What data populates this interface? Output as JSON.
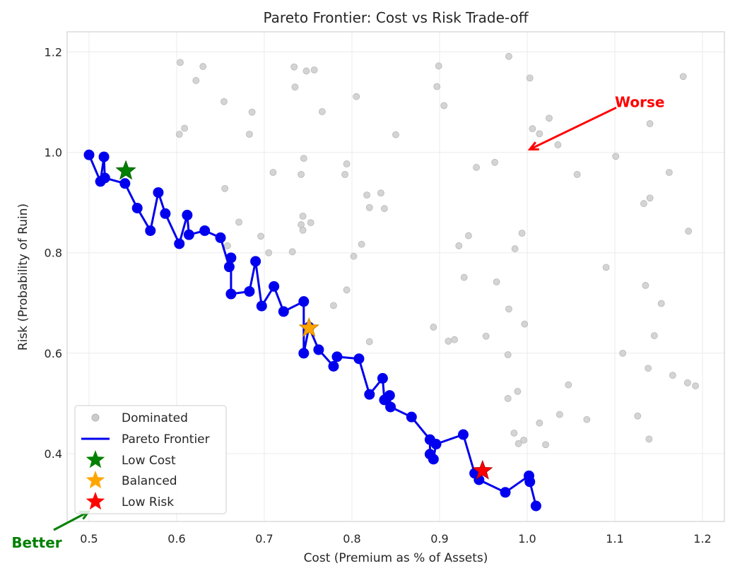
{
  "chart_data": {
    "type": "scatter",
    "title": "Pareto Frontier: Cost vs Risk Trade-off",
    "xlabel": "Cost (Premium as % of Assets)",
    "ylabel": "Risk (Probability of Ruin)",
    "xlim": [
      0.475,
      1.225
    ],
    "ylim": [
      0.265,
      1.24
    ],
    "xticks": [
      "0.5",
      "0.6",
      "0.7",
      "0.8",
      "0.9",
      "1.0",
      "1.1",
      "1.2"
    ],
    "xtick_values": [
      0.5,
      0.6,
      0.7,
      0.8,
      0.9,
      1.0,
      1.1,
      1.2
    ],
    "yticks": [
      "0.4",
      "0.6",
      "0.8",
      "1.0",
      "1.2"
    ],
    "ytick_values": [
      0.4,
      0.6,
      0.8,
      1.0,
      1.2
    ],
    "grid": true,
    "legend_position": "bottom-left",
    "colors": {
      "dominated": "#cccccc",
      "frontier": "#0000ee",
      "low_cost": "#008000",
      "balanced": "#ffa500",
      "low_risk": "#ff0000",
      "worse": "#ff0000",
      "better": "#008000"
    },
    "series": [
      {
        "name": "Dominated",
        "kind": "scatter",
        "points": [
          [
            0.604,
            1.179
          ],
          [
            0.63,
            1.171
          ],
          [
            0.622,
            1.143
          ],
          [
            0.734,
            1.17
          ],
          [
            0.748,
            1.162
          ],
          [
            0.757,
            1.164
          ],
          [
            0.735,
            1.13
          ],
          [
            0.654,
            1.101
          ],
          [
            0.686,
            1.08
          ],
          [
            0.766,
            1.081
          ],
          [
            0.603,
            1.036
          ],
          [
            0.609,
            1.048
          ],
          [
            0.683,
            1.036
          ],
          [
            0.745,
            0.988
          ],
          [
            0.71,
            0.96
          ],
          [
            0.742,
            0.956
          ],
          [
            0.655,
            0.928
          ],
          [
            0.744,
            0.873
          ],
          [
            0.742,
            0.856
          ],
          [
            0.753,
            0.86
          ],
          [
            0.744,
            0.845
          ],
          [
            0.671,
            0.861
          ],
          [
            0.658,
            0.814
          ],
          [
            0.696,
            0.833
          ],
          [
            0.705,
            0.8
          ],
          [
            0.732,
            0.802
          ],
          [
            0.805,
            1.111
          ],
          [
            0.794,
            0.977
          ],
          [
            0.792,
            0.956
          ],
          [
            0.817,
            0.915
          ],
          [
            0.833,
            0.919
          ],
          [
            0.82,
            0.89
          ],
          [
            0.837,
            0.888
          ],
          [
            0.811,
            0.817
          ],
          [
            0.802,
            0.793
          ],
          [
            0.794,
            0.726
          ],
          [
            0.779,
            0.695
          ],
          [
            0.85,
            1.035
          ],
          [
            0.82,
            0.623
          ],
          [
            0.899,
            1.172
          ],
          [
            0.897,
            1.131
          ],
          [
            0.905,
            1.093
          ],
          [
            0.942,
            0.97
          ],
          [
            0.933,
            0.834
          ],
          [
            0.922,
            0.814
          ],
          [
            0.928,
            0.751
          ],
          [
            0.893,
            0.652
          ],
          [
            0.91,
            0.624
          ],
          [
            0.917,
            0.627
          ],
          [
            0.953,
            0.634
          ],
          [
            0.979,
            1.191
          ],
          [
            1.003,
            1.148
          ],
          [
            1.006,
            1.047
          ],
          [
            1.014,
            1.037
          ],
          [
            1.025,
            1.068
          ],
          [
            1.035,
            1.015
          ],
          [
            0.963,
            0.98
          ],
          [
            0.994,
            0.839
          ],
          [
            0.986,
            0.808
          ],
          [
            0.965,
            0.742
          ],
          [
            0.979,
            0.688
          ],
          [
            0.997,
            0.658
          ],
          [
            0.978,
            0.597
          ],
          [
            0.978,
            0.51
          ],
          [
            0.989,
            0.524
          ],
          [
            0.985,
            0.441
          ],
          [
            0.99,
            0.42
          ],
          [
            0.996,
            0.427
          ],
          [
            1.014,
            0.461
          ],
          [
            1.021,
            0.418
          ],
          [
            1.037,
            0.478
          ],
          [
            1.047,
            0.537
          ],
          [
            1.057,
            0.956
          ],
          [
            1.068,
            0.468
          ],
          [
            1.101,
            0.992
          ],
          [
            1.09,
            0.771
          ],
          [
            1.109,
            0.6
          ],
          [
            1.126,
            0.475
          ],
          [
            1.14,
            1.057
          ],
          [
            1.14,
            0.909
          ],
          [
            1.133,
            0.898
          ],
          [
            1.135,
            0.735
          ],
          [
            1.153,
            0.699
          ],
          [
            1.145,
            0.635
          ],
          [
            1.138,
            0.57
          ],
          [
            1.139,
            0.429
          ],
          [
            1.162,
            0.96
          ],
          [
            1.178,
            1.151
          ],
          [
            1.184,
            0.843
          ],
          [
            1.166,
            0.556
          ],
          [
            1.183,
            0.541
          ],
          [
            1.192,
            0.535
          ]
        ]
      },
      {
        "name": "Pareto Frontier",
        "kind": "line",
        "points": [
          [
            0.5,
            0.995
          ],
          [
            0.513,
            0.942
          ],
          [
            0.517,
            0.991
          ],
          [
            0.518,
            0.949
          ],
          [
            0.541,
            0.938
          ],
          [
            0.555,
            0.889
          ],
          [
            0.57,
            0.844
          ],
          [
            0.579,
            0.92
          ],
          [
            0.587,
            0.878
          ],
          [
            0.603,
            0.818
          ],
          [
            0.612,
            0.875
          ],
          [
            0.614,
            0.836
          ],
          [
            0.632,
            0.844
          ],
          [
            0.65,
            0.83
          ],
          [
            0.66,
            0.772
          ],
          [
            0.662,
            0.79
          ],
          [
            0.662,
            0.718
          ],
          [
            0.683,
            0.723
          ],
          [
            0.69,
            0.783
          ],
          [
            0.697,
            0.694
          ],
          [
            0.711,
            0.733
          ],
          [
            0.722,
            0.683
          ],
          [
            0.745,
            0.703
          ],
          [
            0.745,
            0.6
          ],
          [
            0.751,
            0.652
          ],
          [
            0.762,
            0.607
          ],
          [
            0.779,
            0.574
          ],
          [
            0.783,
            0.593
          ],
          [
            0.808,
            0.589
          ],
          [
            0.82,
            0.518
          ],
          [
            0.835,
            0.55
          ],
          [
            0.837,
            0.507
          ],
          [
            0.843,
            0.516
          ],
          [
            0.844,
            0.493
          ],
          [
            0.868,
            0.473
          ],
          [
            0.889,
            0.428
          ],
          [
            0.889,
            0.399
          ],
          [
            0.893,
            0.389
          ],
          [
            0.896,
            0.419
          ],
          [
            0.927,
            0.438
          ],
          [
            0.94,
            0.361
          ],
          [
            0.945,
            0.348
          ],
          [
            0.975,
            0.323
          ],
          [
            1.002,
            0.356
          ],
          [
            1.003,
            0.344
          ],
          [
            1.01,
            0.296
          ]
        ]
      },
      {
        "name": "Low Cost",
        "kind": "star",
        "points": [
          [
            0.542,
            0.963
          ]
        ]
      },
      {
        "name": "Balanced",
        "kind": "star",
        "points": [
          [
            0.751,
            0.65
          ]
        ]
      },
      {
        "name": "Low Risk",
        "kind": "star",
        "points": [
          [
            0.949,
            0.366
          ]
        ]
      }
    ],
    "annotations": [
      {
        "text": "Worse",
        "point": [
          1.003,
          1.006
        ],
        "text_at": [
          1.1,
          1.1
        ]
      },
      {
        "text": "Better",
        "point": [
          0.497,
          0.3
        ],
        "text_at": [
          0.42,
          0.245
        ]
      }
    ]
  }
}
